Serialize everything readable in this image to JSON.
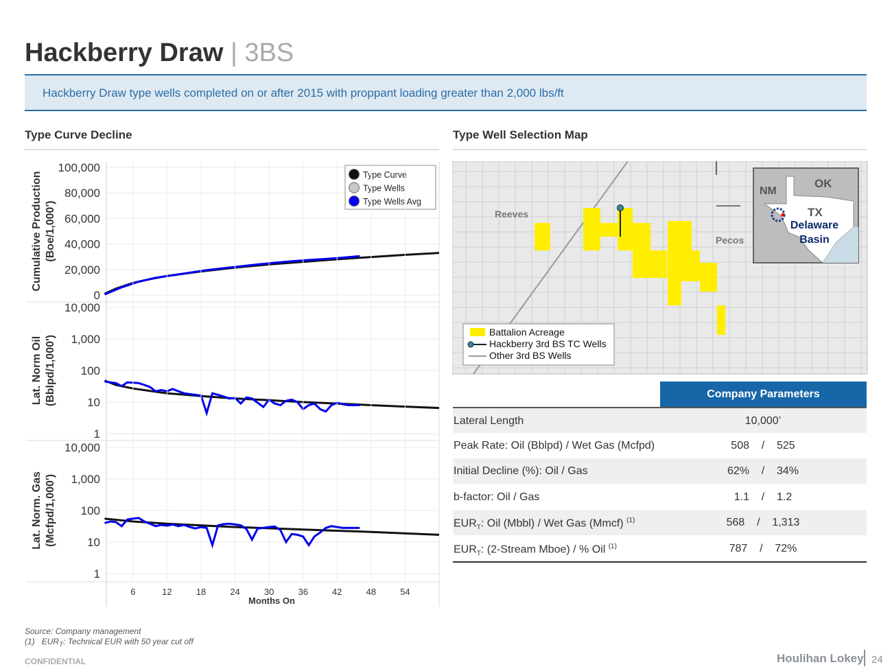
{
  "header": {
    "title": "Hackberry Draw",
    "separator": "|",
    "subtitle": "3BS"
  },
  "banner": "Hackberry Draw type wells completed on or after 2015 with proppant loading greater than 2,000 lbs/ft",
  "left_title": "Type Curve Decline",
  "right_title": "Type Well Selection Map",
  "chart_data": [
    {
      "type": "line",
      "ylabel": [
        "Cumulative Production",
        "(Boe/1,000')"
      ],
      "yscale": "linear",
      "ylim": [
        0,
        100000
      ],
      "yticks": [
        0,
        {
          "value": 20000,
          "label": "20,000"
        },
        {
          "value": 40000,
          "label": "40,000"
        },
        {
          "value": 60000,
          "label": "60,000"
        },
        {
          "value": 80000,
          "label": "80,000"
        },
        {
          "value": 100000,
          "label": "100,000"
        }
      ],
      "xlim": [
        1.3,
        60
      ],
      "grid": true,
      "legend": "upper right",
      "series": [
        {
          "name": "Type Curve",
          "color": "#111111",
          "x": [
            1,
            3,
            6,
            9,
            12,
            18,
            24,
            30,
            36,
            42,
            48,
            54,
            60
          ],
          "values": [
            1000,
            5000,
            9500,
            12500,
            15000,
            18500,
            21500,
            24000,
            26000,
            28000,
            29800,
            31500,
            33000
          ]
        },
        {
          "name": "Type Wells",
          "color": "#c8c8c8",
          "x": [],
          "values": []
        },
        {
          "name": "Type Wells Avg",
          "color": "#0000ee",
          "x": [
            1,
            4,
            7,
            10,
            13,
            16,
            19,
            22,
            25,
            28,
            31,
            34,
            37,
            40,
            43,
            46
          ],
          "values": [
            500,
            6000,
            10500,
            13500,
            15500,
            17500,
            19500,
            21000,
            22500,
            24000,
            25300,
            26500,
            27500,
            28300,
            29300,
            30500
          ]
        }
      ]
    },
    {
      "type": "line",
      "ylabel": [
        "Lat. Norm Oil",
        "(Bblpd/1,000')"
      ],
      "yscale": "log",
      "ylim": [
        1,
        10000
      ],
      "yticks": [
        1,
        10,
        100,
        {
          "value": 1000,
          "label": "1,000"
        },
        {
          "value": 10000,
          "label": "10,000"
        }
      ],
      "xlim": [
        1.3,
        60
      ],
      "grid": true,
      "series": [
        {
          "name": "Type Curve",
          "color": "#111111",
          "x": [
            1,
            3,
            6,
            12,
            18,
            24,
            30,
            36,
            42,
            48,
            54,
            60
          ],
          "values": [
            48,
            35,
            27,
            19,
            15.5,
            13,
            11.5,
            10,
            9,
            8,
            7.2,
            6.5
          ]
        },
        {
          "name": "Type Wells Avg",
          "color": "#0000ee",
          "x": [
            1,
            2,
            3,
            4,
            5,
            6,
            7,
            8,
            9,
            10,
            11,
            12,
            13,
            14,
            15,
            16,
            17,
            18,
            19,
            20,
            21,
            22,
            23,
            24,
            25,
            26,
            27,
            28,
            29,
            30,
            31,
            32,
            33,
            34,
            35,
            36,
            37,
            38,
            39,
            40,
            41,
            42,
            43,
            44,
            45,
            46
          ],
          "values": [
            45,
            42,
            40,
            32,
            42,
            41,
            40,
            35,
            30,
            22,
            24,
            22,
            26,
            22,
            19,
            18,
            17,
            16,
            4.5,
            19,
            17,
            15,
            13,
            13.5,
            9,
            14,
            13,
            9.5,
            7,
            12,
            9,
            8,
            11,
            12,
            10,
            6,
            8,
            9,
            6,
            5,
            8,
            9.5,
            8.5,
            8,
            8,
            8
          ]
        }
      ]
    },
    {
      "type": "line",
      "ylabel": [
        "Lat. Norm. Gas",
        "(Mcfpd/1,000')"
      ],
      "yscale": "log",
      "ylim": [
        1,
        10000
      ],
      "yticks": [
        1,
        10,
        100,
        {
          "value": 1000,
          "label": "1,000"
        },
        {
          "value": 10000,
          "label": "10,000"
        }
      ],
      "xlim": [
        1.3,
        60
      ],
      "grid": true,
      "xticks": [
        6,
        12,
        18,
        24,
        30,
        36,
        42,
        48,
        54
      ],
      "xlabel": "Months On",
      "series": [
        {
          "name": "Type Curve",
          "color": "#111111",
          "x": [
            1,
            6,
            12,
            24,
            36,
            48,
            60
          ],
          "values": [
            55,
            45,
            38,
            30,
            25,
            21,
            17
          ]
        },
        {
          "name": "Type Wells Avg",
          "color": "#0000ee",
          "x": [
            1,
            2,
            3,
            4,
            5,
            6,
            7,
            8,
            9,
            10,
            11,
            12,
            13,
            14,
            15,
            16,
            17,
            18,
            19,
            20,
            21,
            22,
            23,
            24,
            25,
            26,
            27,
            28,
            29,
            30,
            31,
            32,
            33,
            34,
            35,
            36,
            37,
            38,
            39,
            40,
            41,
            42,
            43,
            44,
            45,
            46
          ],
          "values": [
            40,
            45,
            43,
            32,
            52,
            55,
            58,
            45,
            38,
            32,
            35,
            33,
            36,
            32,
            35,
            30,
            27,
            30,
            28,
            8,
            34,
            37,
            38,
            36,
            34,
            26,
            12,
            27,
            28,
            30,
            31,
            24,
            10,
            18,
            17,
            15,
            8,
            15,
            20,
            28,
            32,
            30,
            28,
            28,
            28,
            28
          ]
        }
      ]
    }
  ],
  "map": {
    "labels": {
      "reeves": "Reeves",
      "pecos": "Pecos",
      "nm": "NM",
      "ok": "OK",
      "tx": "TX",
      "basin": [
        "Delaware",
        "Basin"
      ]
    },
    "legend": [
      "Battalion Acreage",
      "Hackberry 3rd BS TC Wells",
      "Other 3rd BS Wells"
    ]
  },
  "table": {
    "header": "Company Parameters",
    "rows": [
      {
        "label": {
          "main": "Lateral Length"
        },
        "value": "10,000’"
      },
      {
        "label": {
          "main": "Peak Rate: Oil (Bblpd) / Wet Gas (Mcfpd)"
        },
        "value": "508    /    525"
      },
      {
        "label": {
          "main": "Initial Decline (%): Oil / Gas"
        },
        "value": "62%    /    34%"
      },
      {
        "label": {
          "main": "b-factor: Oil / Gas"
        },
        "value": "1.1    /    1.2"
      },
      {
        "label": {
          "main": "EUR",
          "sub": "T",
          "rest": ": Oil (Mbbl) / Wet Gas (Mmcf)",
          "note": "(1)"
        },
        "value": "568    /    1,313"
      },
      {
        "label": {
          "main": "EUR",
          "sub": "T",
          "rest": ": (2-Stream Mboe) / % Oil",
          "note": "(1)"
        },
        "value": "787    /    72%"
      }
    ]
  },
  "footer": {
    "source": "Source: Company management",
    "note": {
      "num": "(1)",
      "main": "EUR",
      "sub": "T",
      "rest": ": Technical EUR with 50 year cut off"
    },
    "confidential": "CONFIDENTIAL",
    "logo": "Houlihan Lokey",
    "page": "24"
  }
}
